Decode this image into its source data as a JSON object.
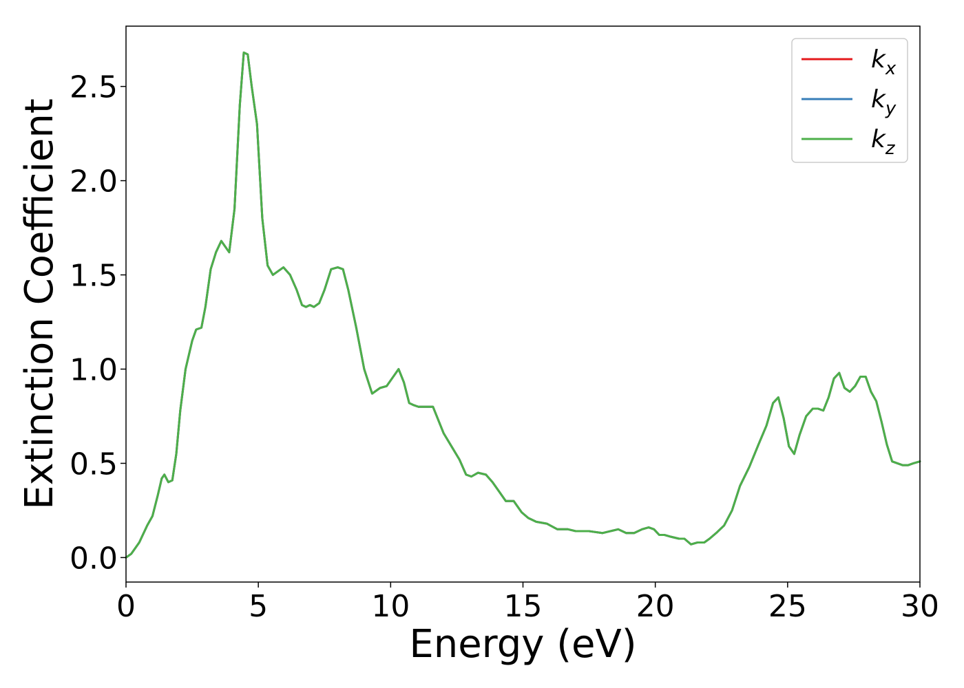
{
  "chart_data": {
    "type": "line",
    "title": "",
    "xlabel": "Energy (eV)",
    "ylabel": "Extinction Coefficient",
    "xlim": [
      0,
      30
    ],
    "ylim": [
      -0.13,
      2.82
    ],
    "x_ticks": [
      0,
      5,
      10,
      15,
      20,
      25,
      30
    ],
    "x_tick_labels": [
      "0",
      "5",
      "10",
      "15",
      "20",
      "25",
      "30"
    ],
    "y_ticks": [
      0.0,
      0.5,
      1.0,
      1.5,
      2.0,
      2.5
    ],
    "y_tick_labels": [
      "0.0",
      "0.5",
      "1.0",
      "1.5",
      "2.0",
      "2.5"
    ],
    "grid": false,
    "legend_position": "top-right",
    "x": [
      0,
      0.2,
      0.5,
      0.8,
      1.0,
      1.2,
      1.35,
      1.45,
      1.6,
      1.75,
      1.9,
      2.05,
      2.25,
      2.5,
      2.65,
      2.85,
      3.0,
      3.2,
      3.4,
      3.6,
      3.75,
      3.9,
      4.1,
      4.3,
      4.45,
      4.6,
      4.75,
      4.95,
      5.15,
      5.35,
      5.55,
      5.75,
      5.95,
      6.2,
      6.45,
      6.65,
      6.8,
      6.95,
      7.1,
      7.3,
      7.5,
      7.75,
      8.0,
      8.2,
      8.4,
      8.7,
      9.0,
      9.3,
      9.6,
      9.85,
      10.1,
      10.3,
      10.5,
      10.7,
      10.85,
      11.05,
      11.35,
      11.6,
      11.8,
      12.0,
      12.3,
      12.6,
      12.85,
      13.05,
      13.3,
      13.6,
      13.85,
      14.1,
      14.35,
      14.65,
      14.95,
      15.2,
      15.5,
      15.9,
      16.3,
      16.7,
      17.0,
      17.5,
      18.0,
      18.3,
      18.6,
      18.9,
      19.2,
      19.5,
      19.75,
      19.95,
      20.15,
      20.35,
      20.6,
      20.9,
      21.1,
      21.35,
      21.6,
      21.85,
      22.05,
      22.3,
      22.6,
      22.9,
      23.2,
      23.55,
      23.9,
      24.2,
      24.45,
      24.65,
      24.85,
      25.05,
      25.25,
      25.45,
      25.7,
      25.95,
      26.15,
      26.35,
      26.55,
      26.75,
      26.95,
      27.15,
      27.35,
      27.55,
      27.75,
      27.95,
      28.15,
      28.35,
      28.55,
      28.75,
      28.95,
      29.15,
      29.35,
      29.55,
      29.75,
      30.0
    ],
    "series": [
      {
        "name": "k_x",
        "color": "#e41a1c",
        "values": [
          0.0,
          0.02,
          0.08,
          0.17,
          0.22,
          0.33,
          0.42,
          0.44,
          0.4,
          0.41,
          0.55,
          0.78,
          1.0,
          1.15,
          1.21,
          1.22,
          1.33,
          1.53,
          1.62,
          1.68,
          1.65,
          1.62,
          1.85,
          2.4,
          2.68,
          2.67,
          2.5,
          2.3,
          1.8,
          1.55,
          1.5,
          1.52,
          1.54,
          1.5,
          1.42,
          1.34,
          1.33,
          1.34,
          1.33,
          1.35,
          1.42,
          1.53,
          1.54,
          1.53,
          1.42,
          1.22,
          1.0,
          0.87,
          0.9,
          0.91,
          0.96,
          1.0,
          0.93,
          0.82,
          0.81,
          0.8,
          0.8,
          0.8,
          0.73,
          0.66,
          0.59,
          0.52,
          0.44,
          0.43,
          0.45,
          0.44,
          0.4,
          0.35,
          0.3,
          0.3,
          0.24,
          0.21,
          0.19,
          0.18,
          0.15,
          0.15,
          0.14,
          0.14,
          0.13,
          0.14,
          0.15,
          0.13,
          0.13,
          0.15,
          0.16,
          0.15,
          0.12,
          0.12,
          0.11,
          0.1,
          0.1,
          0.07,
          0.08,
          0.08,
          0.1,
          0.13,
          0.17,
          0.25,
          0.38,
          0.48,
          0.6,
          0.7,
          0.82,
          0.85,
          0.74,
          0.59,
          0.55,
          0.65,
          0.75,
          0.79,
          0.79,
          0.78,
          0.85,
          0.95,
          0.98,
          0.9,
          0.88,
          0.91,
          0.96,
          0.96,
          0.88,
          0.83,
          0.72,
          0.6,
          0.51,
          0.5,
          0.49,
          0.49,
          0.5,
          0.51
        ]
      },
      {
        "name": "k_y",
        "color": "#377eb8",
        "values": [
          0.0,
          0.02,
          0.08,
          0.17,
          0.22,
          0.33,
          0.42,
          0.44,
          0.4,
          0.41,
          0.55,
          0.78,
          1.0,
          1.15,
          1.21,
          1.22,
          1.33,
          1.53,
          1.62,
          1.68,
          1.65,
          1.62,
          1.85,
          2.4,
          2.68,
          2.67,
          2.5,
          2.3,
          1.8,
          1.55,
          1.5,
          1.52,
          1.54,
          1.5,
          1.42,
          1.34,
          1.33,
          1.34,
          1.33,
          1.35,
          1.42,
          1.53,
          1.54,
          1.53,
          1.42,
          1.22,
          1.0,
          0.87,
          0.9,
          0.91,
          0.96,
          1.0,
          0.93,
          0.82,
          0.81,
          0.8,
          0.8,
          0.8,
          0.73,
          0.66,
          0.59,
          0.52,
          0.44,
          0.43,
          0.45,
          0.44,
          0.4,
          0.35,
          0.3,
          0.3,
          0.24,
          0.21,
          0.19,
          0.18,
          0.15,
          0.15,
          0.14,
          0.14,
          0.13,
          0.14,
          0.15,
          0.13,
          0.13,
          0.15,
          0.16,
          0.15,
          0.12,
          0.12,
          0.11,
          0.1,
          0.1,
          0.07,
          0.08,
          0.08,
          0.1,
          0.13,
          0.17,
          0.25,
          0.38,
          0.48,
          0.6,
          0.7,
          0.82,
          0.85,
          0.74,
          0.59,
          0.55,
          0.65,
          0.75,
          0.79,
          0.79,
          0.78,
          0.85,
          0.95,
          0.98,
          0.9,
          0.88,
          0.91,
          0.96,
          0.96,
          0.88,
          0.83,
          0.72,
          0.6,
          0.51,
          0.5,
          0.49,
          0.49,
          0.5,
          0.51
        ]
      },
      {
        "name": "k_z",
        "color": "#4daf4a",
        "values": [
          0.0,
          0.02,
          0.08,
          0.17,
          0.22,
          0.33,
          0.42,
          0.44,
          0.4,
          0.41,
          0.55,
          0.78,
          1.0,
          1.15,
          1.21,
          1.22,
          1.33,
          1.53,
          1.62,
          1.68,
          1.65,
          1.62,
          1.85,
          2.4,
          2.68,
          2.67,
          2.5,
          2.3,
          1.8,
          1.55,
          1.5,
          1.52,
          1.54,
          1.5,
          1.42,
          1.34,
          1.33,
          1.34,
          1.33,
          1.35,
          1.42,
          1.53,
          1.54,
          1.53,
          1.42,
          1.22,
          1.0,
          0.87,
          0.9,
          0.91,
          0.96,
          1.0,
          0.93,
          0.82,
          0.81,
          0.8,
          0.8,
          0.8,
          0.73,
          0.66,
          0.59,
          0.52,
          0.44,
          0.43,
          0.45,
          0.44,
          0.4,
          0.35,
          0.3,
          0.3,
          0.24,
          0.21,
          0.19,
          0.18,
          0.15,
          0.15,
          0.14,
          0.14,
          0.13,
          0.14,
          0.15,
          0.13,
          0.13,
          0.15,
          0.16,
          0.15,
          0.12,
          0.12,
          0.11,
          0.1,
          0.1,
          0.07,
          0.08,
          0.08,
          0.1,
          0.13,
          0.17,
          0.25,
          0.38,
          0.48,
          0.6,
          0.7,
          0.82,
          0.85,
          0.74,
          0.59,
          0.55,
          0.65,
          0.75,
          0.79,
          0.79,
          0.78,
          0.85,
          0.95,
          0.98,
          0.9,
          0.88,
          0.91,
          0.96,
          0.96,
          0.88,
          0.83,
          0.72,
          0.6,
          0.51,
          0.5,
          0.49,
          0.49,
          0.5,
          0.51
        ]
      }
    ],
    "legend": [
      {
        "base": "k",
        "sub": "x",
        "color": "#e41a1c"
      },
      {
        "base": "k",
        "sub": "y",
        "color": "#377eb8"
      },
      {
        "base": "k",
        "sub": "z",
        "color": "#4daf4a"
      }
    ]
  }
}
